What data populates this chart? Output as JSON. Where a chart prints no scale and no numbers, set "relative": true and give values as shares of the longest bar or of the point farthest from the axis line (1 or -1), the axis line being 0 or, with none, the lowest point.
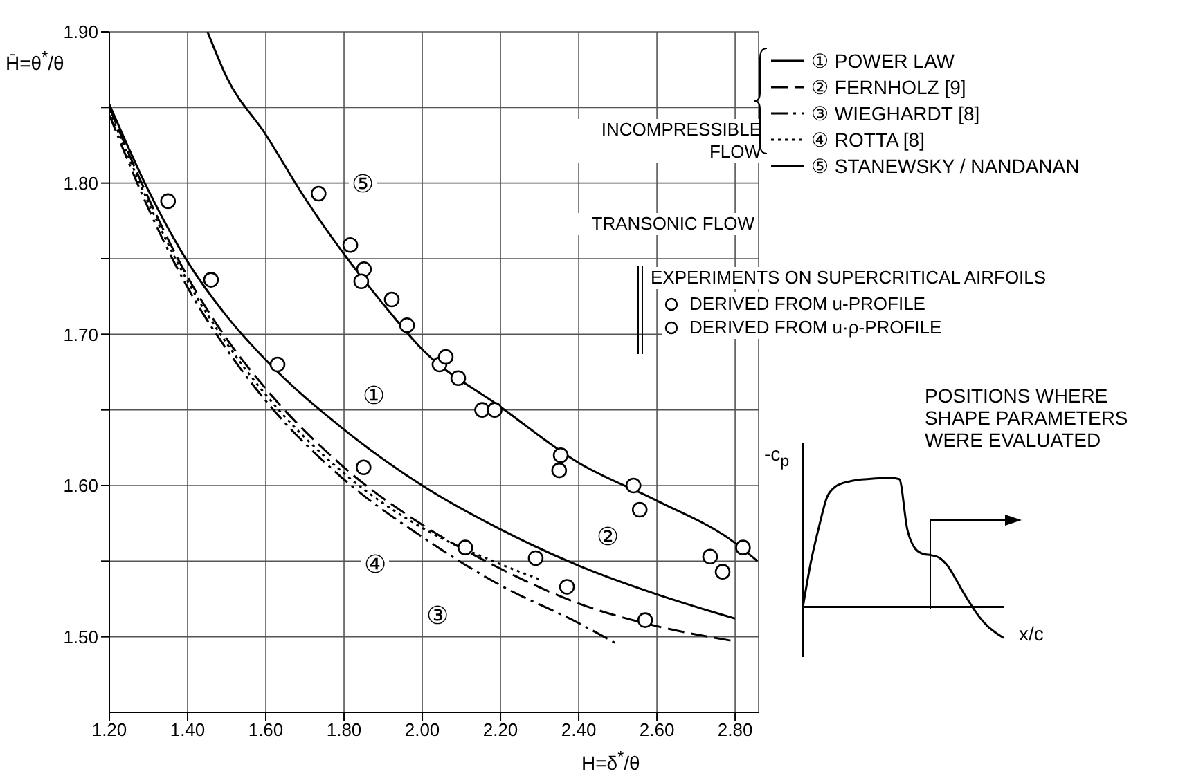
{
  "chart_data": [
    {
      "type": "line",
      "xlabel": "H=δ$^{*}$/θ",
      "ylabel": "H̄=θ$^{*}$/θ",
      "xlim": [
        1.2,
        2.86
      ],
      "ylim": [
        1.45,
        1.9
      ],
      "xticks": [
        {
          "value": 1.2,
          "label": "1.20"
        },
        {
          "value": 1.4,
          "label": "1.40"
        },
        {
          "value": 1.6,
          "label": "1.60"
        },
        {
          "value": 1.8,
          "label": "1.80"
        },
        {
          "value": 2.0,
          "label": "2.00"
        },
        {
          "value": 2.2,
          "label": "2.20"
        },
        {
          "value": 2.4,
          "label": "2.40"
        },
        {
          "value": 2.6,
          "label": "2.60"
        },
        {
          "value": 2.8,
          "label": "2.80"
        }
      ],
      "yticks": [
        {
          "value": 1.5,
          "label": "1.50"
        },
        {
          "value": 1.55,
          "label": null
        },
        {
          "value": 1.6,
          "label": "1.60"
        },
        {
          "value": 1.65,
          "label": null
        },
        {
          "value": 1.7,
          "label": "1.70"
        },
        {
          "value": 1.75,
          "label": null
        },
        {
          "value": 1.8,
          "label": "1.80"
        },
        {
          "value": 1.85,
          "label": null
        },
        {
          "value": 1.9,
          "label": "1.90"
        }
      ],
      "grid": true,
      "legend": "top right",
      "series": [
        {
          "name": "① POWER LAW",
          "color": "#000000",
          "line_style": "solid",
          "marker": "none",
          "x": [
            1.2,
            1.3,
            1.4,
            1.5,
            1.6,
            1.8,
            2.0,
            2.2,
            2.4,
            2.6,
            2.8
          ],
          "values": [
            1.852,
            1.795,
            1.748,
            1.712,
            1.683,
            1.637,
            1.6,
            1.571,
            1.547,
            1.528,
            1.512
          ]
        },
        {
          "name": "② FERNHOLZ [9]",
          "color": "#000000",
          "line_style": "dashed",
          "marker": "none",
          "x": [
            1.2,
            1.3,
            1.4,
            1.5,
            1.6,
            1.8,
            2.0,
            2.2,
            2.4,
            2.6,
            2.8
          ],
          "values": [
            1.85,
            1.79,
            1.738,
            1.697,
            1.664,
            1.612,
            1.574,
            1.545,
            1.522,
            1.507,
            1.497
          ]
        },
        {
          "name": "③ WIEGHARDT [8]",
          "color": "#000000",
          "line_style": "dashdot",
          "marker": "none",
          "x": [
            1.2,
            1.3,
            1.4,
            1.5,
            1.6,
            1.8,
            2.0,
            2.2,
            2.4,
            2.5
          ],
          "values": [
            1.845,
            1.783,
            1.731,
            1.69,
            1.656,
            1.604,
            1.566,
            1.534,
            1.509,
            1.495
          ]
        },
        {
          "name": "④ ROTTA [8]",
          "color": "#000000",
          "line_style": "dotted",
          "marker": "none",
          "x": [
            1.2,
            1.3,
            1.4,
            1.5,
            1.6,
            1.8,
            2.0,
            2.2,
            2.3
          ],
          "values": [
            1.848,
            1.787,
            1.735,
            1.694,
            1.66,
            1.608,
            1.572,
            1.548,
            1.538
          ]
        },
        {
          "name": "⑤ STANEWSKY / NANDANAN",
          "color": "#000000",
          "line_style": "solid",
          "marker": "none",
          "x": [
            1.451,
            1.5,
            1.6,
            1.7,
            1.8,
            1.9,
            2.0,
            2.2,
            2.4,
            2.6,
            2.8,
            2.857
          ],
          "values": [
            1.9,
            1.87,
            1.832,
            1.79,
            1.753,
            1.72,
            1.69,
            1.652,
            1.615,
            1.59,
            1.562,
            1.55
          ]
        },
        {
          "name": "DERIVED FROM u-PROFILE",
          "type": "scatter",
          "color": "#000000",
          "marker": "circle",
          "x": [
            1.35,
            1.46,
            1.63,
            1.85,
            2.11,
            2.29,
            2.37,
            2.57
          ],
          "values": [
            1.788,
            1.736,
            1.68,
            1.612,
            1.559,
            1.552,
            1.533,
            1.511
          ]
        },
        {
          "name": "DERIVED FROM u·ρ-PROFILE",
          "type": "scatter",
          "color": "#000000",
          "marker": "circle",
          "x": [
            1.735,
            1.816,
            1.851,
            1.844,
            1.922,
            1.961,
            2.044,
            2.06,
            2.092,
            2.153,
            2.185,
            2.354,
            2.35,
            2.54,
            2.556,
            2.736,
            2.768,
            2.82
          ],
          "values": [
            1.793,
            1.759,
            1.743,
            1.735,
            1.723,
            1.706,
            1.68,
            1.685,
            1.671,
            1.65,
            1.65,
            1.62,
            1.61,
            1.6,
            1.584,
            1.553,
            1.543,
            1.559
          ]
        }
      ],
      "annotations": [
        {
          "text": "①",
          "x": 1.876,
          "y": 1.659
        },
        {
          "text": "②",
          "x": 2.474,
          "y": 1.566
        },
        {
          "text": "③",
          "x": 2.039,
          "y": 1.514
        },
        {
          "text": "④",
          "x": 1.88,
          "y": 1.548
        },
        {
          "text": "⑤",
          "x": 1.848,
          "y": 1.799
        },
        "INCOMPRESSIBLE FLOW",
        "TRANSONIC FLOW",
        "EXPERIMENTS ON SUPERCRITICAL AIRFOILS"
      ]
    },
    {
      "type": "line",
      "relative": true,
      "xlabel": "x/c",
      "ylabel": "-c$_{p}$",
      "categories": [
        null,
        null,
        null,
        null,
        null,
        null,
        null,
        null,
        null,
        null,
        null,
        null,
        null,
        null,
        null,
        null,
        null,
        null,
        null,
        null,
        null,
        null,
        null,
        null,
        null,
        null
      ],
      "series": [
        {
          "color": "#000000",
          "values": [
            0,
            0.35,
            0.62,
            0.85,
            0.93,
            0.96,
            0.975,
            0.985,
            0.99,
            0.995,
            1,
            1,
            0.99,
            0.6,
            0.45,
            0.41,
            0.4,
            0.38,
            0.32,
            0.22,
            0.11,
            0.01,
            -0.08,
            -0.15,
            -0.2,
            -0.24
          ]
        }
      ],
      "annotations": [
        "POSITIONS WHERE SHAPE PARAMETERS WERE EVALUATED"
      ]
    }
  ]
}
